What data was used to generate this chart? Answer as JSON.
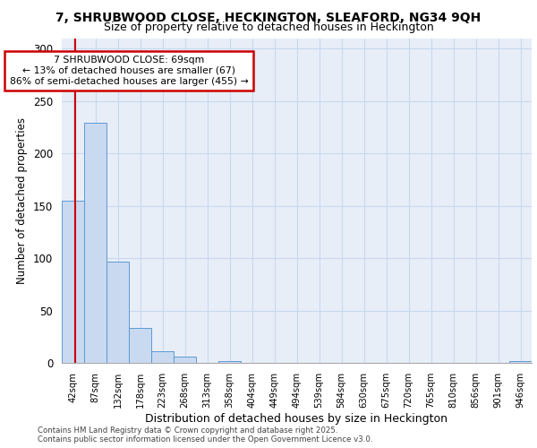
{
  "title_line1": "7, SHRUBWOOD CLOSE, HECKINGTON, SLEAFORD, NG34 9QH",
  "title_line2": "Size of property relative to detached houses in Heckington",
  "xlabel": "Distribution of detached houses by size in Heckington",
  "ylabel": "Number of detached properties",
  "bin_labels": [
    "42sqm",
    "87sqm",
    "132sqm",
    "178sqm",
    "223sqm",
    "268sqm",
    "313sqm",
    "358sqm",
    "404sqm",
    "449sqm",
    "494sqm",
    "539sqm",
    "584sqm",
    "630sqm",
    "675sqm",
    "720sqm",
    "765sqm",
    "810sqm",
    "856sqm",
    "901sqm",
    "946sqm"
  ],
  "bar_heights": [
    155,
    229,
    97,
    33,
    11,
    6,
    0,
    2,
    0,
    0,
    0,
    0,
    0,
    0,
    0,
    0,
    0,
    0,
    0,
    0,
    2
  ],
  "bar_color": "#c9d9f0",
  "bar_edge_color": "#5b9bd5",
  "annotation_text": "7 SHRUBWOOD CLOSE: 69sqm\n← 13% of detached houses are smaller (67)\n86% of semi-detached houses are larger (455) →",
  "annotation_box_edge": "#cc0000",
  "annotation_box_face": "#ffffff",
  "ylim": [
    0,
    310
  ],
  "yticks": [
    0,
    50,
    100,
    150,
    200,
    250,
    300
  ],
  "grid_color": "#c8d8f0",
  "background_color": "#e8eef8",
  "footer_line1": "Contains HM Land Registry data © Crown copyright and database right 2025.",
  "footer_line2": "Contains public sector information licensed under the Open Government Licence v3.0."
}
